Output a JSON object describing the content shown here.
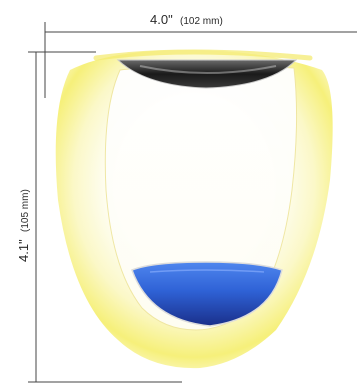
{
  "dimensions": {
    "width_main": "4.0\"",
    "width_metric": "(102 mm)",
    "height_main": "4.1\"",
    "height_metric": "(105 mm)"
  },
  "colors": {
    "outer_glow": "#f6f07a",
    "outer_glow_pale": "#fbf8c8",
    "top_lens_dark": "#1a1a1a",
    "bottom_lens_blue": "#2f62d6",
    "bottom_lens_dark": "#1a2f8a",
    "dimension_line": "#444444"
  }
}
